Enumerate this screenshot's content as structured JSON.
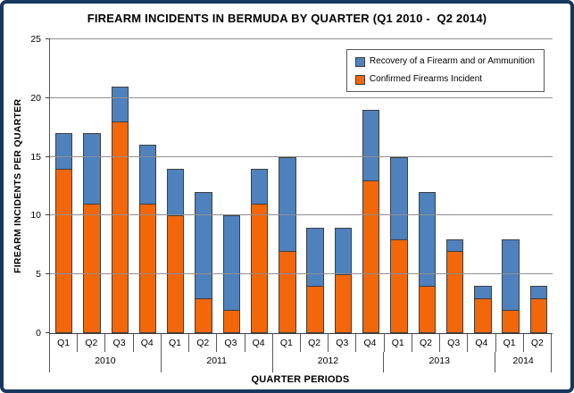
{
  "chart": {
    "title": "FIREARM INCIDENTS IN BERMUDA BY QUARTER (Q1 2010 -  Q2 2014)",
    "ylabel": "FIREARM INCIDENTS PER QUARTER",
    "xlabel": "QUARTER PERIODS"
  },
  "legend": {
    "items": [
      {
        "label": "Recovery of a Firearm and or Ammunition",
        "color": "#4F81BD"
      },
      {
        "label": "Confirmed Firearms Incident",
        "color": "#F2670A"
      }
    ]
  },
  "colors": {
    "frame_border": "#17375E",
    "gridline": "#909090",
    "axis_line": "#404040",
    "bar_outline": "#3F3F3F",
    "recovery_blue": "#4F81BD",
    "confirmed_orange": "#F2670A"
  },
  "chart_data": {
    "type": "bar",
    "stacked": true,
    "title": "FIREARM INCIDENTS IN BERMUDA BY QUARTER (Q1 2010 -  Q2 2014)",
    "xlabel": "QUARTER PERIODS",
    "ylabel": "FIREARM INCIDENTS PER QUARTER",
    "ylim": [
      0,
      25
    ],
    "ytick_interval": 5,
    "grid": true,
    "legend_position": "top-right-inside",
    "year_groups": [
      {
        "year": "2010",
        "quarters": [
          "Q1",
          "Q2",
          "Q3",
          "Q4"
        ]
      },
      {
        "year": "2011",
        "quarters": [
          "Q1",
          "Q2",
          "Q3",
          "Q4"
        ]
      },
      {
        "year": "2012",
        "quarters": [
          "Q1",
          "Q2",
          "Q3",
          "Q4"
        ]
      },
      {
        "year": "2013",
        "quarters": [
          "Q1",
          "Q2",
          "Q3",
          "Q4"
        ]
      },
      {
        "year": "2014",
        "quarters": [
          "Q1",
          "Q2"
        ]
      }
    ],
    "categories": [
      "Q1 2010",
      "Q2 2010",
      "Q3 2010",
      "Q4 2010",
      "Q1 2011",
      "Q2 2011",
      "Q3 2011",
      "Q4 2011",
      "Q1 2012",
      "Q2 2012",
      "Q3 2012",
      "Q4 2012",
      "Q1 2013",
      "Q2 2013",
      "Q3 2013",
      "Q4 2013",
      "Q1 2014",
      "Q2 2014"
    ],
    "series": [
      {
        "name": "Confirmed Firearms Incident",
        "color": "#F2670A",
        "values": [
          14,
          11,
          18,
          11,
          10,
          3,
          2,
          11,
          7,
          4,
          5,
          13,
          8,
          4,
          7,
          3,
          2,
          3
        ]
      },
      {
        "name": "Recovery of a Firearm and or Ammunition",
        "color": "#4F81BD",
        "values": [
          3,
          6,
          3,
          5,
          4,
          9,
          8,
          3,
          8,
          5,
          4,
          6,
          7,
          8,
          1,
          1,
          6,
          1
        ]
      }
    ]
  }
}
